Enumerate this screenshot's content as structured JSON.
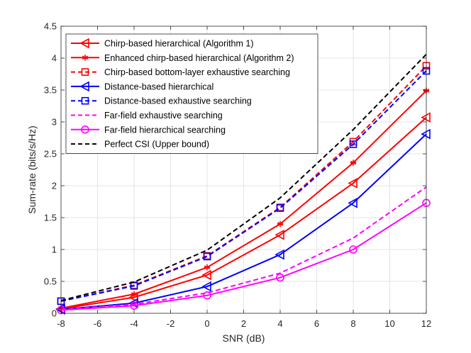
{
  "chart_data": {
    "type": "line",
    "title": "",
    "xlabel": "SNR (dB)",
    "ylabel": "Sum-rate (bits/s/Hz)",
    "xlim": [
      -8,
      12
    ],
    "ylim": [
      0,
      4.5
    ],
    "xticks": [
      "-8",
      "-6",
      "-4",
      "-2",
      "0",
      "2",
      "4",
      "6",
      "8",
      "10",
      "12"
    ],
    "yticks": [
      "0",
      "0.5",
      "1",
      "1.5",
      "2",
      "2.5",
      "3",
      "3.5",
      "4",
      "4.5"
    ],
    "grid": true,
    "legend_position": "top-left",
    "x": [
      -8,
      -4,
      0,
      4,
      8,
      12
    ],
    "series": [
      {
        "name": "Chirp-based hierarchical (Algorithm 1)",
        "values": [
          0.07,
          0.25,
          0.6,
          1.23,
          2.04,
          3.07
        ],
        "color": "#ff0000",
        "dash": "solid",
        "marker": "triangle-left"
      },
      {
        "name": "Enhanced chirp-based hierarchical (Algorithm 2)",
        "values": [
          0.08,
          0.3,
          0.72,
          1.4,
          2.36,
          3.49
        ],
        "color": "#ff0000",
        "dash": "solid",
        "marker": "asterisk"
      },
      {
        "name": "Chirp-based bottom-layer exhaustive searching",
        "values": [
          0.19,
          0.44,
          0.9,
          1.66,
          2.69,
          3.88
        ],
        "color": "#ff0000",
        "dash": "dashed",
        "marker": "square"
      },
      {
        "name": "Distance-based hierarchical",
        "values": [
          0.06,
          0.16,
          0.42,
          0.92,
          1.73,
          2.81
        ],
        "color": "#0000ff",
        "dash": "solid",
        "marker": "triangle-left"
      },
      {
        "name": "Distance-based exhaustive searching",
        "values": [
          0.19,
          0.43,
          0.89,
          1.65,
          2.65,
          3.8
        ],
        "color": "#0000ff",
        "dash": "dashed",
        "marker": "square"
      },
      {
        "name": "Far-field exhaustive searching",
        "values": [
          0.06,
          0.14,
          0.32,
          0.63,
          1.18,
          1.98
        ],
        "color": "#ff00ff",
        "dash": "dashed",
        "marker": "none"
      },
      {
        "name": "Far-field hierarchical searching",
        "values": [
          0.05,
          0.12,
          0.28,
          0.56,
          1.0,
          1.73
        ],
        "color": "#ff00ff",
        "dash": "solid",
        "marker": "circle"
      },
      {
        "name": "Perfect CSI (Upper bound)",
        "values": [
          0.2,
          0.49,
          0.99,
          1.81,
          2.88,
          4.06
        ],
        "color": "#000000",
        "dash": "dashed",
        "marker": "none"
      }
    ]
  }
}
